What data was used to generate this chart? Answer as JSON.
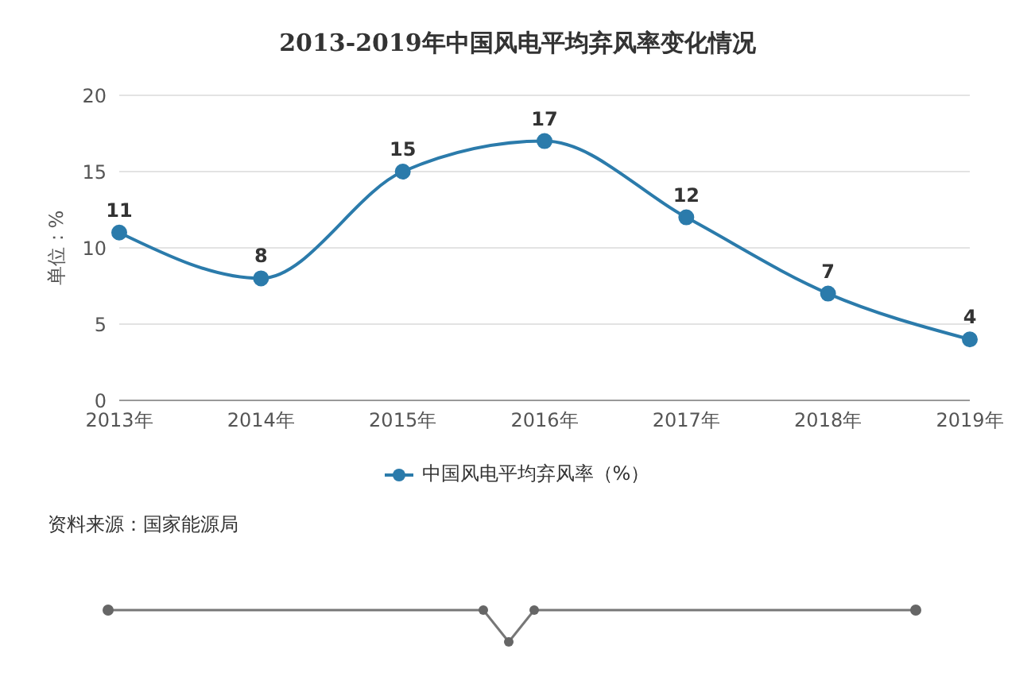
{
  "chart_data": {
    "type": "line",
    "title": "2013-2019年中国风电平均弃风率变化情况",
    "ylabel": "单位：%",
    "categories": [
      "2013年",
      "2014年",
      "2015年",
      "2016年",
      "2017年",
      "2018年",
      "2019年"
    ],
    "series": [
      {
        "name": "中国风电平均弃风率（%）",
        "color": "#2b7bab",
        "values": [
          11,
          8,
          15,
          17,
          12,
          7,
          4
        ]
      }
    ],
    "ylim": [
      0,
      20
    ],
    "yticks": [
      0,
      5,
      10,
      15,
      20
    ],
    "grid": "y",
    "legend": "bottom",
    "marker": "circle",
    "line_style": "solid",
    "data_labels": true,
    "annotations": [
      "资料来源：国家能源局"
    ]
  }
}
